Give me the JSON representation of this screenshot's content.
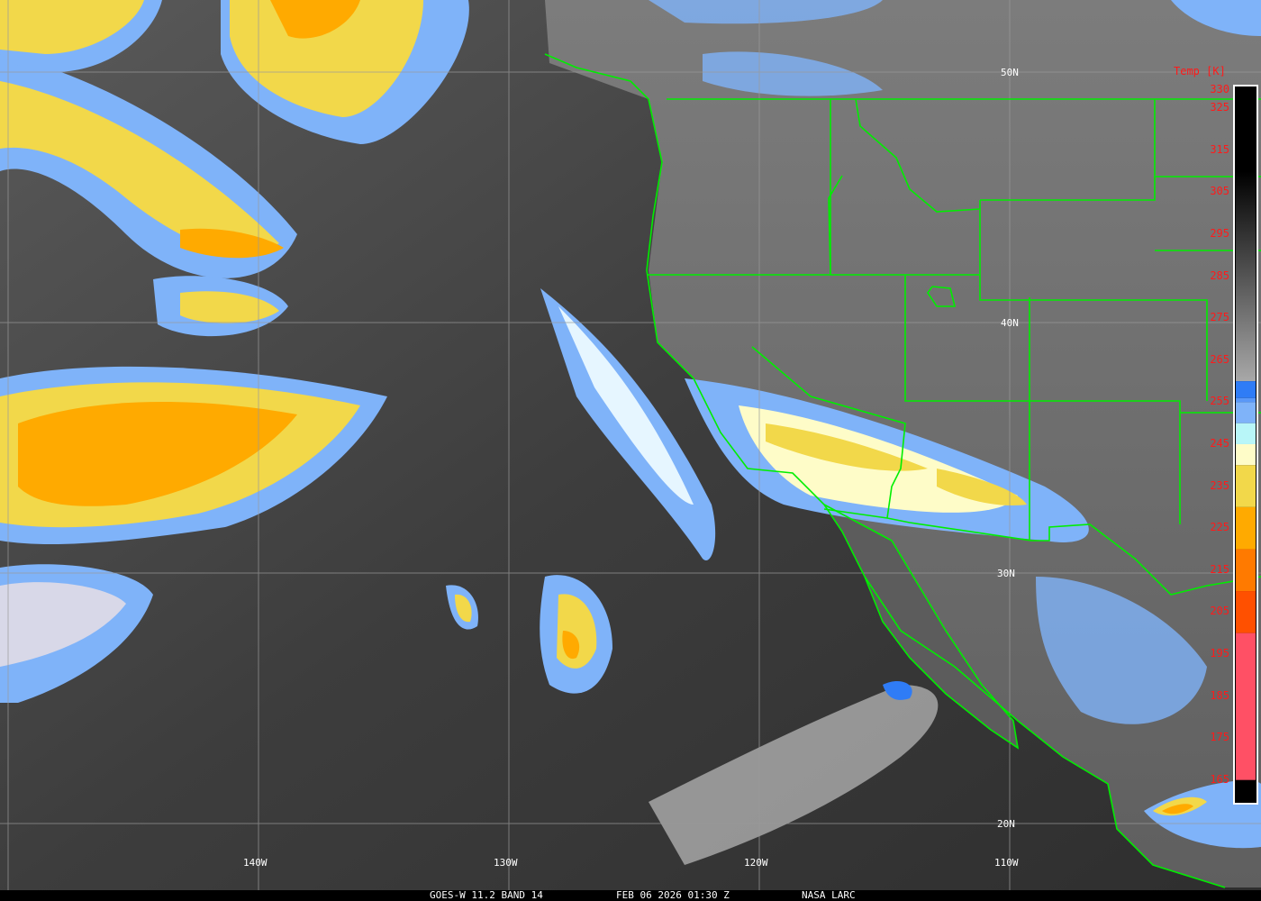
{
  "grid": {
    "lat_labels": [
      "50N",
      "40N",
      "30N",
      "20N"
    ],
    "lon_labels": [
      "140W",
      "130W",
      "120W",
      "110W"
    ]
  },
  "colorbar": {
    "title": "Temp [K]",
    "range_k": [
      330,
      163
    ],
    "ticks": [
      "330",
      "325",
      "315",
      "305",
      "295",
      "285",
      "275",
      "265",
      "255",
      "245",
      "235",
      "225",
      "215",
      "205",
      "195",
      "185",
      "175",
      "165"
    ],
    "segments": [
      {
        "from": 330,
        "to": 310,
        "color": "#000000"
      },
      {
        "from": 310,
        "to": 260,
        "gradient": [
          "#000000",
          "#a8a8a8"
        ]
      },
      {
        "from": 260,
        "to": 256,
        "color": "#2f7cf6"
      },
      {
        "from": 256,
        "to": 255,
        "color": "#5a98f8"
      },
      {
        "from": 255,
        "to": 250,
        "color": "#7fb3f9"
      },
      {
        "from": 250,
        "to": 245,
        "color": "#b8f6f8"
      },
      {
        "from": 245,
        "to": 240,
        "color": "#fefcc8"
      },
      {
        "from": 240,
        "to": 230,
        "color": "#f2d84a"
      },
      {
        "from": 230,
        "to": 220,
        "color": "#ffaa00"
      },
      {
        "from": 220,
        "to": 210,
        "color": "#ff7a00"
      },
      {
        "from": 210,
        "to": 200,
        "color": "#ff5000"
      },
      {
        "from": 200,
        "to": 165,
        "color": "#ff5065"
      }
    ]
  },
  "footer": {
    "satellite": "GOES-W 11.2 BAND 14",
    "datetime": "FEB 06 2026 01:30 Z",
    "source": "NASA LARC"
  },
  "colors": {
    "border": "#00ee00",
    "grid": "#9a9a9a",
    "label": "#ff1a1a"
  }
}
